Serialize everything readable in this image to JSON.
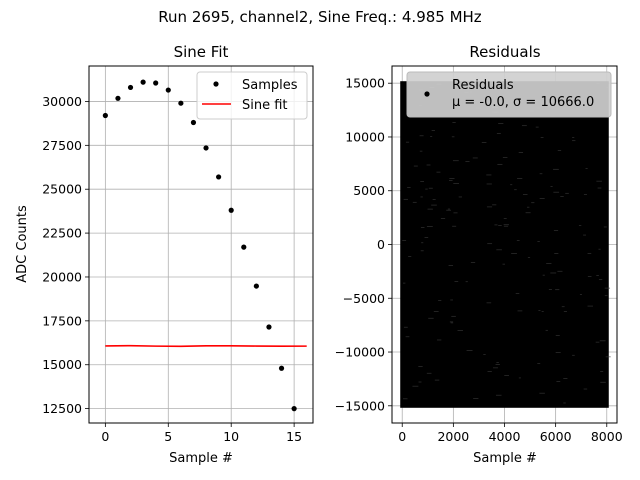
{
  "figure": {
    "suptitle": "Run 2695, channel2, Sine Freq.: 4.985 MHz"
  },
  "chart_data": [
    {
      "type": "scatter",
      "title": "Sine Fit",
      "xlabel": "Sample #",
      "ylabel": "ADC Counts",
      "xlim": [
        -1.3,
        16.5
      ],
      "ylim": [
        11680,
        32020
      ],
      "xticks": [
        0,
        5,
        10,
        15
      ],
      "yticks": [
        12500,
        15000,
        17500,
        20000,
        22500,
        25000,
        27500,
        30000
      ],
      "grid": true,
      "legend_position": "upper-right",
      "series": [
        {
          "name": "Samples",
          "kind": "points",
          "color": "#000000",
          "x": [
            0,
            1,
            2,
            3,
            4,
            5,
            6,
            7,
            8,
            9,
            10,
            11,
            12,
            13,
            14,
            15
          ],
          "y": [
            29200,
            30180,
            30800,
            31100,
            31050,
            30650,
            29900,
            28800,
            27350,
            25700,
            23800,
            21700,
            19480,
            17150,
            14800,
            12500
          ]
        },
        {
          "name": "Sine fit",
          "kind": "line",
          "color": "#ff0000",
          "x": [
            0,
            2,
            4,
            6,
            8,
            10,
            12,
            14,
            16
          ],
          "y": [
            16070,
            16085,
            16060,
            16050,
            16075,
            16080,
            16065,
            16055,
            16060
          ]
        }
      ]
    },
    {
      "type": "scatter",
      "title": "Residuals",
      "xlabel": "Sample #",
      "ylabel": "",
      "xlim": [
        -400,
        8400
      ],
      "ylim": [
        -16600,
        16600
      ],
      "xticks": [
        0,
        2000,
        4000,
        6000,
        8000
      ],
      "yticks": [
        -15000,
        -10000,
        -5000,
        0,
        5000,
        10000,
        15000
      ],
      "grid": true,
      "legend_position": "upper-right",
      "series": [
        {
          "name": "Residuals",
          "legend_stat_line": "μ = -0.0, σ = 10666.0",
          "kind": "dense-points",
          "color": "#000000",
          "x_range": [
            0,
            8000
          ],
          "y_range": [
            -15000,
            15000
          ]
        }
      ]
    }
  ]
}
